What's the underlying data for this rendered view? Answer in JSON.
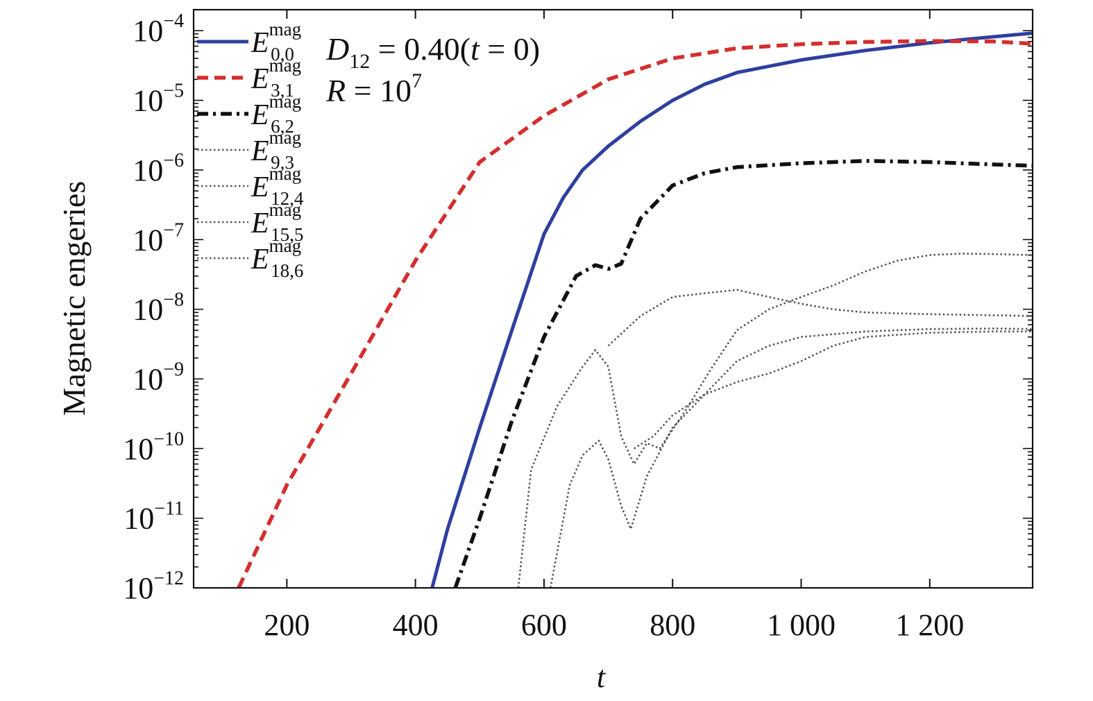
{
  "chart_data": {
    "type": "line",
    "xlabel": "t",
    "ylabel": "Magnetic engeries",
    "x_scale": "linear",
    "y_scale": "log",
    "xlim": [
      55,
      1360
    ],
    "ylim": [
      1e-12,
      0.0002
    ],
    "x_ticks": [
      200,
      400,
      600,
      800,
      1000,
      1200
    ],
    "x_tick_labels": [
      "200",
      "400",
      "600",
      "800",
      "1 000",
      "1 200"
    ],
    "y_ticks": [
      1e-12,
      1e-11,
      1e-10,
      1e-09,
      1e-08,
      1e-07,
      1e-06,
      1e-05,
      0.0001
    ],
    "y_tick_labels": [
      {
        "base": "10",
        "exp": "−12"
      },
      {
        "base": "10",
        "exp": "−11"
      },
      {
        "base": "10",
        "exp": "−10"
      },
      {
        "base": "10",
        "exp": "−9"
      },
      {
        "base": "10",
        "exp": "−8"
      },
      {
        "base": "10",
        "exp": "−7"
      },
      {
        "base": "10",
        "exp": "−6"
      },
      {
        "base": "10",
        "exp": "−5"
      },
      {
        "base": "10",
        "exp": "−4"
      }
    ],
    "grid": false,
    "legend_position": "top-left",
    "annotations": [
      {
        "main": "D",
        "sub": "12",
        "rest": " = 0.40(",
        "ital": "t",
        "rest2": " = 0)"
      },
      {
        "main": "R",
        "eq": " = 10",
        "sup": "7"
      }
    ],
    "series": [
      {
        "name": "E^mag_{0,0}",
        "legend": {
          "main": "E",
          "sup": "mag",
          "sub": "0,0"
        },
        "color": "#2e3f9e",
        "style": "solid",
        "points": [
          [
            426,
            1e-12
          ],
          [
            450,
            7e-12
          ],
          [
            500,
            2e-10
          ],
          [
            550,
            5e-09
          ],
          [
            600,
            1.2e-07
          ],
          [
            630,
            4e-07
          ],
          [
            660,
            1e-06
          ],
          [
            700,
            2.2e-06
          ],
          [
            750,
            5e-06
          ],
          [
            800,
            1e-05
          ],
          [
            850,
            1.7e-05
          ],
          [
            900,
            2.5e-05
          ],
          [
            1000,
            3.8e-05
          ],
          [
            1100,
            5.2e-05
          ],
          [
            1200,
            6.7e-05
          ],
          [
            1300,
            8.2e-05
          ],
          [
            1360,
            9.2e-05
          ]
        ]
      },
      {
        "name": "E^mag_{3,1}",
        "legend": {
          "main": "E",
          "sup": "mag",
          "sub": "3,1"
        },
        "color": "#d42e2e",
        "style": "dashed",
        "points": [
          [
            125,
            1e-12
          ],
          [
            200,
            3e-11
          ],
          [
            300,
            1.2e-09
          ],
          [
            400,
            5e-08
          ],
          [
            500,
            1.3e-06
          ],
          [
            600,
            6e-06
          ],
          [
            700,
            2e-05
          ],
          [
            800,
            4e-05
          ],
          [
            900,
            5.6e-05
          ],
          [
            1000,
            6.4e-05
          ],
          [
            1100,
            6.9e-05
          ],
          [
            1200,
            7.1e-05
          ],
          [
            1300,
            7e-05
          ],
          [
            1360,
            6.5e-05
          ]
        ]
      },
      {
        "name": "E^mag_{6,2}",
        "legend": {
          "main": "E",
          "sup": "mag",
          "sub": "6,2"
        },
        "color": "#111111",
        "style": "dashdot",
        "points": [
          [
            462,
            1e-12
          ],
          [
            500,
            1e-11
          ],
          [
            550,
            2.5e-10
          ],
          [
            600,
            4e-09
          ],
          [
            650,
            3e-08
          ],
          [
            680,
            4.3e-08
          ],
          [
            700,
            3.8e-08
          ],
          [
            720,
            4.5e-08
          ],
          [
            750,
            2e-07
          ],
          [
            800,
            6e-07
          ],
          [
            850,
            9e-07
          ],
          [
            900,
            1.1e-06
          ],
          [
            1000,
            1.25e-06
          ],
          [
            1100,
            1.35e-06
          ],
          [
            1200,
            1.3e-06
          ],
          [
            1300,
            1.2e-06
          ],
          [
            1360,
            1.15e-06
          ]
        ]
      },
      {
        "name": "E^mag_{9,3}",
        "legend": {
          "main": "E",
          "sup": "mag",
          "sub": "9,3"
        },
        "color": "#555555",
        "style": "dotted",
        "points": [
          [
            560,
            1e-12
          ],
          [
            580,
            5e-11
          ],
          [
            620,
            4e-10
          ],
          [
            660,
            1.5e-09
          ],
          [
            680,
            2.6e-09
          ],
          [
            700,
            1.5e-09
          ],
          [
            720,
            1.5e-10
          ],
          [
            740,
            6e-11
          ],
          [
            760,
            1.2e-10
          ],
          [
            780,
            1e-10
          ],
          [
            820,
            3.5e-10
          ],
          [
            860,
            1.4e-09
          ],
          [
            900,
            5e-09
          ],
          [
            950,
            1e-08
          ],
          [
            1000,
            1.5e-08
          ],
          [
            1050,
            2.2e-08
          ],
          [
            1100,
            3.5e-08
          ],
          [
            1150,
            5e-08
          ],
          [
            1200,
            6e-08
          ],
          [
            1250,
            6.3e-08
          ],
          [
            1300,
            6.2e-08
          ],
          [
            1360,
            6e-08
          ]
        ]
      },
      {
        "name": "E^mag_{12,4}",
        "legend": {
          "main": "E",
          "sup": "mag",
          "sub": "12,4"
        },
        "color": "#555555",
        "style": "dotted",
        "points": [
          [
            610,
            1e-12
          ],
          [
            640,
            3e-11
          ],
          [
            660,
            8e-11
          ],
          [
            685,
            1.3e-10
          ],
          [
            700,
            7e-11
          ],
          [
            720,
            1.5e-11
          ],
          [
            735,
            7e-12
          ],
          [
            760,
            4e-11
          ],
          [
            800,
            2e-10
          ],
          [
            850,
            6e-10
          ],
          [
            900,
            1.8e-09
          ],
          [
            950,
            3e-09
          ],
          [
            1000,
            4e-09
          ],
          [
            1100,
            4.8e-09
          ],
          [
            1200,
            5.2e-09
          ],
          [
            1300,
            5.3e-09
          ],
          [
            1360,
            5.2e-09
          ]
        ]
      },
      {
        "name": "E^mag_{15,5}",
        "legend": {
          "main": "E",
          "sup": "mag",
          "sub": "15,5"
        },
        "color": "#555555",
        "style": "dotted",
        "points": [
          [
            740,
            1e-10
          ],
          [
            770,
            1.5e-10
          ],
          [
            800,
            3e-10
          ],
          [
            850,
            6e-10
          ],
          [
            900,
            9e-10
          ],
          [
            950,
            1.2e-09
          ],
          [
            1000,
            1.8e-09
          ],
          [
            1050,
            3e-09
          ],
          [
            1100,
            4e-09
          ],
          [
            1150,
            4.3e-09
          ],
          [
            1200,
            4.6e-09
          ],
          [
            1300,
            4.8e-09
          ],
          [
            1360,
            4.8e-09
          ]
        ]
      },
      {
        "name": "E^mag_{18,6}",
        "legend": {
          "main": "E",
          "sup": "mag",
          "sub": "18,6"
        },
        "color": "#555555",
        "style": "dotted",
        "points": [
          [
            700,
            3e-09
          ],
          [
            750,
            8e-09
          ],
          [
            800,
            1.5e-08
          ],
          [
            850,
            1.7e-08
          ],
          [
            900,
            1.9e-08
          ],
          [
            950,
            1.5e-08
          ],
          [
            1000,
            1.2e-08
          ],
          [
            1050,
            1e-08
          ],
          [
            1100,
            9e-09
          ],
          [
            1200,
            8.5e-09
          ],
          [
            1300,
            8.2e-09
          ],
          [
            1360,
            8e-09
          ]
        ]
      }
    ]
  }
}
